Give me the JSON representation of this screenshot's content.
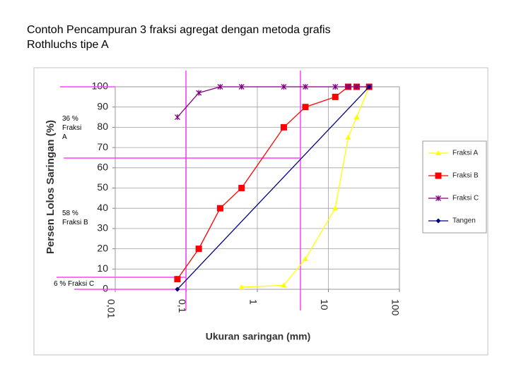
{
  "chart_data": {
    "type": "line",
    "title": "Contoh Pencampuran 3 fraksi agregat dengan metoda grafis Rothluchs tipe A",
    "x_label": "Ukuran saringan (mm)",
    "y_label": "Persen Lolos Saringan (%)",
    "x_scale": "log",
    "xlim": [
      0.01,
      100
    ],
    "xticks": [
      {
        "value": 0.01,
        "label": "0,01"
      },
      {
        "value": 0.1,
        "label": "0,1"
      },
      1,
      10,
      100
    ],
    "ylim": [
      0,
      100
    ],
    "yticks": [
      0,
      10,
      20,
      30,
      40,
      50,
      60,
      70,
      80,
      90,
      100
    ],
    "grid": true,
    "legend": "right",
    "annotations": [
      "36 % Fraksi A",
      "58 % Fraksi B",
      "6 % Fraksi C"
    ],
    "series": [
      {
        "name": "Fraksi A",
        "color": "#ffff00",
        "marker": "triangle",
        "x": [
          0.6,
          2.36,
          4.75,
          12.5,
          19,
          25,
          37.5
        ],
        "values": [
          1,
          2,
          15,
          40,
          75,
          85,
          100
        ]
      },
      {
        "name": "Fraksi B",
        "color": "#ff0000",
        "marker": "square",
        "x": [
          0.075,
          0.15,
          0.3,
          0.6,
          2.36,
          4.75,
          12.5,
          19,
          25,
          37.5
        ],
        "values": [
          5,
          20,
          40,
          50,
          80,
          90,
          95,
          100,
          100,
          100
        ]
      },
      {
        "name": "Fraksi C",
        "color": "#800080",
        "marker": "star",
        "x": [
          0.075,
          0.15,
          0.3,
          0.6,
          2.36,
          4.75,
          12.5,
          19,
          25,
          37.5
        ],
        "values": [
          85,
          97,
          100,
          100,
          100,
          100,
          100,
          100,
          100,
          100
        ]
      },
      {
        "name": "Tangen",
        "color": "#000080",
        "marker": "diamond",
        "x": [
          0.075,
          37.5
        ],
        "values": [
          0,
          100
        ]
      }
    ]
  }
}
